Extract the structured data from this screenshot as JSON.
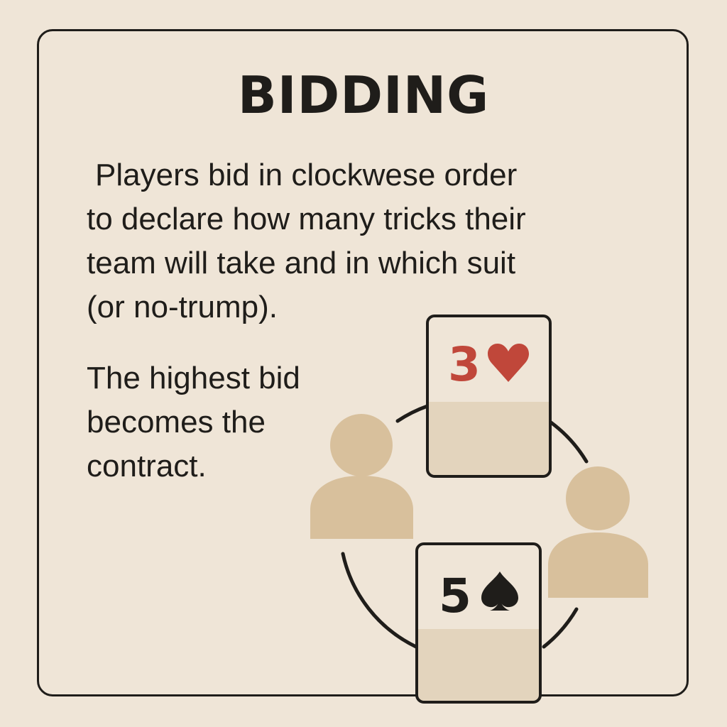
{
  "title": "BIDDING",
  "paragraph_1": {
    "line_1": "Players bid in clockwese order",
    "line_2": "to declare how many tricks their",
    "line_3": "team will take and in which suit",
    "line_4": "(or no-trump)."
  },
  "paragraph_2": {
    "line_1": "The highest bid",
    "line_2": "becomes the",
    "line_3": "contract."
  },
  "cards": {
    "top": {
      "rank": "3",
      "suit": "heart",
      "suit_glyph": "♥",
      "color": "#c0473a"
    },
    "bottom": {
      "rank": "5",
      "suit": "spade",
      "suit_glyph": "♠",
      "color": "#1f1d1a"
    }
  },
  "colors": {
    "background": "#efe5d7",
    "ink": "#1f1d1a",
    "person": "#d8c09c",
    "card_face": "#efe5d7",
    "card_lower": "#e3d4bd",
    "heart_red": "#c0473a"
  }
}
